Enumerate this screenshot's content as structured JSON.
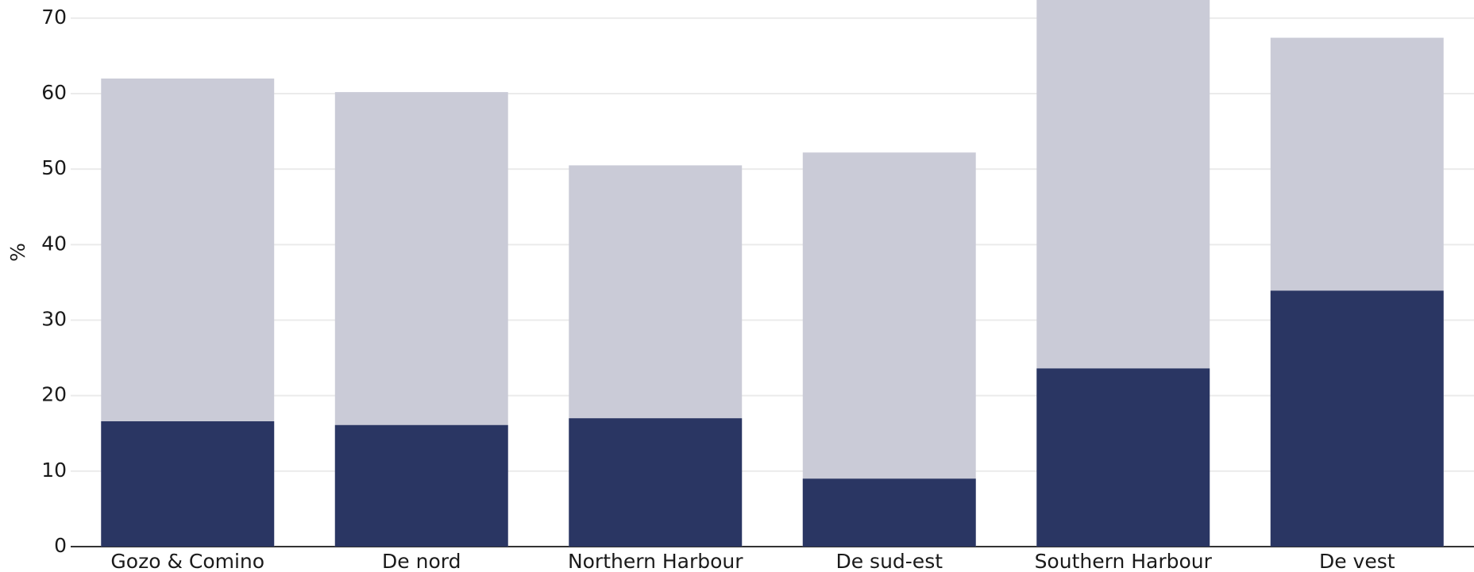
{
  "chart_data": {
    "type": "bar",
    "mode": "overlap",
    "y_label": "%",
    "categories": [
      "Gozo & Comino",
      "De nord",
      "Northern Harbour",
      "De sud-est",
      "Southern Harbour",
      "De vest"
    ],
    "series": [
      {
        "color": "#cacbd7",
        "values": [
          62,
          60.2,
          50.5,
          52.2,
          73,
          67.4
        ]
      },
      {
        "color": "#2a3663",
        "values": [
          16.6,
          16.1,
          17,
          9,
          23.6,
          33.9
        ]
      }
    ],
    "ylim": [
      0,
      72.4
    ],
    "yticks": [
      0,
      10,
      20,
      30,
      40,
      50,
      60,
      70
    ],
    "grid": true
  }
}
